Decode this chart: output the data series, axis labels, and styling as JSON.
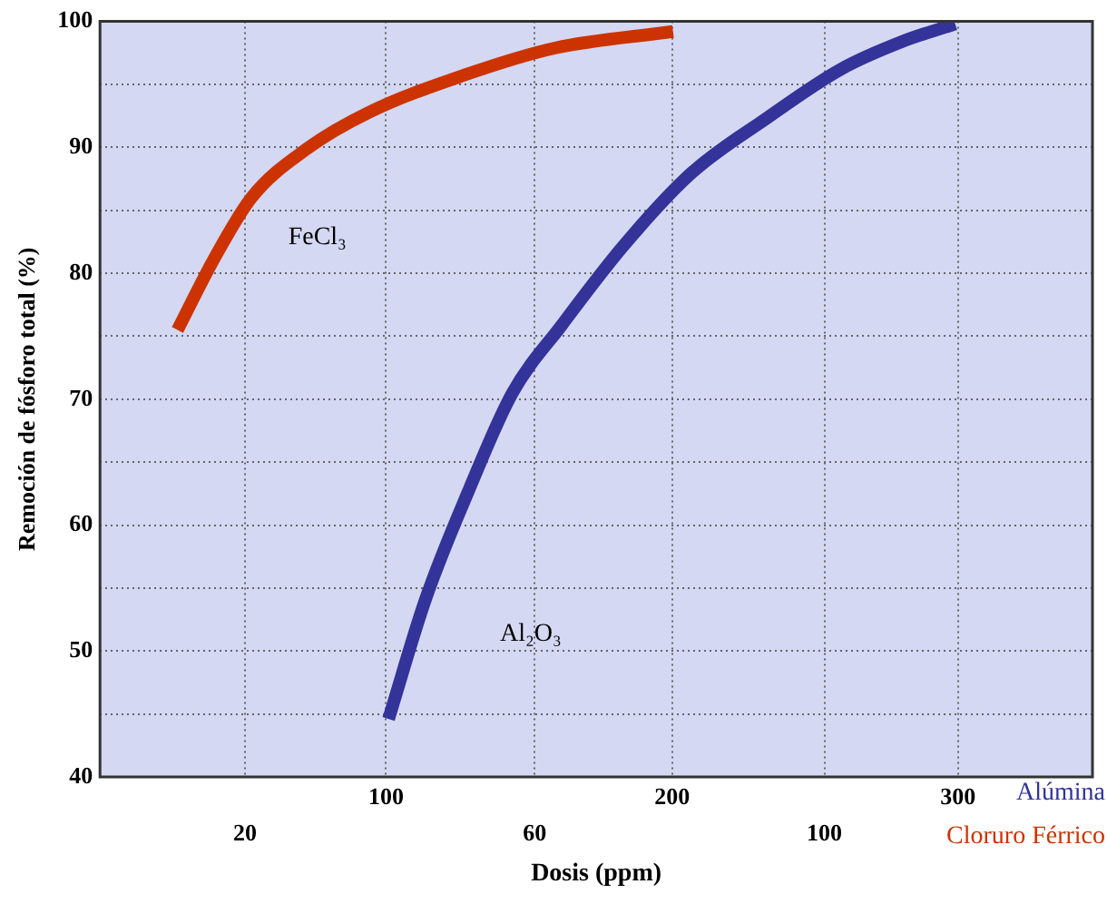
{
  "chart_data": {
    "type": "line",
    "xlabel": "Dosis (ppm)",
    "ylabel": "Remoción de fósforo total (%)",
    "xlim": [
      0,
      347
    ],
    "xticks": [
      100,
      200,
      300
    ],
    "x2lim": [
      0,
      137
    ],
    "x2ticks": [
      20,
      60,
      100
    ],
    "ylim": [
      40,
      100
    ],
    "yticks": [
      40,
      {
        "value": 45,
        "label": null
      },
      50,
      {
        "value": 55,
        "label": null
      },
      60,
      {
        "value": 65,
        "label": null
      },
      70,
      {
        "value": 75,
        "label": null
      },
      80,
      {
        "value": 85,
        "label": null
      },
      90,
      {
        "value": 95,
        "label": null
      },
      100
    ],
    "grid": true,
    "series": [
      {
        "name": "Alúmina",
        "color": "#333399",
        "x": [
          100.9,
          113.8,
          129,
          144.2,
          161.5,
          183.1,
          207,
          233,
          259,
          280.5,
          299
        ],
        "values": [
          44.6,
          54.1,
          62.8,
          70.5,
          75.9,
          82.2,
          88.0,
          92.3,
          96.2,
          98.4,
          99.8
        ]
      },
      {
        "name": "Cloruro Férrico",
        "color": "#cc3300",
        "axis": "x2",
        "x": [
          10.7,
          15.8,
          20.9,
          28.6,
          37.2,
          50.1,
          62.9,
          79.1
        ],
        "values": [
          75.5,
          81.2,
          86.0,
          89.9,
          92.8,
          95.7,
          97.9,
          99.2
        ]
      }
    ],
    "annotations": [
      "FeCl₃",
      "Al₂O₃"
    ]
  }
}
